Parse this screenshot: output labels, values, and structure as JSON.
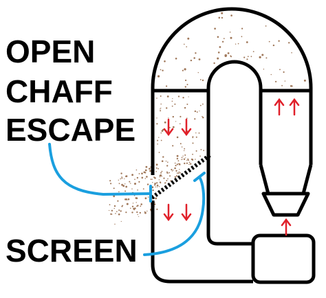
{
  "labels": {
    "chaff_escape_lines": [
      "OPEN",
      "CHAFF",
      "ESCAPE"
    ],
    "screen": "SCREEN"
  },
  "colors": {
    "outline": "#000000",
    "pointer_lines": "#1a9fdf",
    "airflow_arrows": "#e0202a",
    "chaff_particles": "#a0785a",
    "background": "#ffffff"
  },
  "airflow_arrows": [
    {
      "name": "down-arrow-left-upper",
      "direction": "down"
    },
    {
      "name": "down-arrow-left-upper",
      "direction": "down"
    },
    {
      "name": "down-arrow-left-lower",
      "direction": "down"
    },
    {
      "name": "down-arrow-left-lower",
      "direction": "down"
    },
    {
      "name": "up-arrow-right-column",
      "direction": "up"
    },
    {
      "name": "up-arrow-right-column",
      "direction": "up"
    },
    {
      "name": "up-arrow-fan-inlet",
      "direction": "up"
    }
  ]
}
